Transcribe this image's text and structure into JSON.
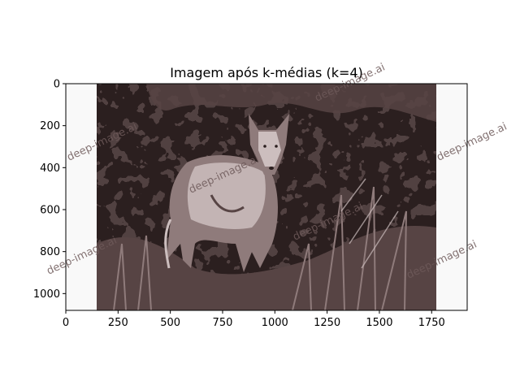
{
  "figure": {
    "title": "Imagem após k-médias (k=4)",
    "watermark_text": "deep-image.ai",
    "image_size": {
      "width": 1920,
      "height": 1080
    },
    "x_ticks": [
      0,
      250,
      500,
      750,
      1000,
      1250,
      1500,
      1750
    ],
    "y_ticks": [
      0,
      200,
      400,
      600,
      800,
      1000
    ],
    "x_tick_labels": [
      "0",
      "250",
      "500",
      "750",
      "1000",
      "1250",
      "1500",
      "1750"
    ],
    "y_tick_labels": [
      "0",
      "200",
      "400",
      "600",
      "800",
      "1000"
    ],
    "cluster_colors": [
      "#2b1f1f",
      "#574444",
      "#8f7b7b",
      "#ccbebe"
    ],
    "padding_color": "#f9f9f9",
    "image_content": "coyote standing in grass, quantized to 4 colors",
    "photo_extent": {
      "x_start": 145,
      "x_end": 1765
    }
  }
}
